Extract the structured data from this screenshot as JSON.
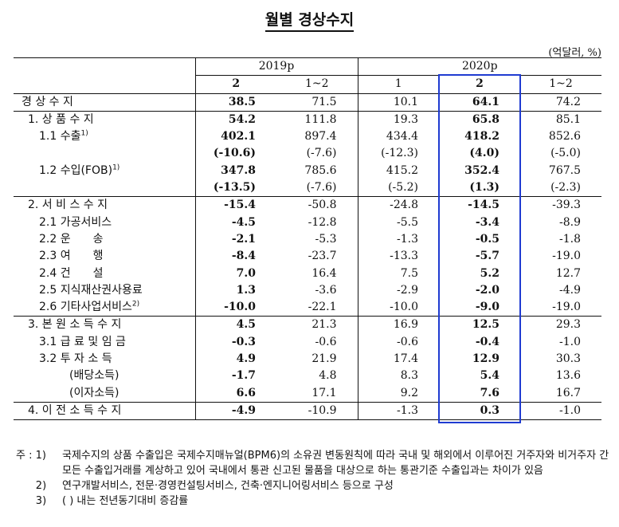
{
  "title": "월별 경상수지",
  "unit": "(억달러, %)",
  "header": {
    "year_2019": "2019p",
    "year_2020": "2020p",
    "cols": [
      "2",
      "1~2",
      "1",
      "2",
      "1~2"
    ]
  },
  "rows": [
    {
      "label": "경 상 수 지",
      "indent": 0,
      "vals": [
        "38.5",
        "71.5",
        "10.1",
        "64.1",
        "74.2"
      ]
    },
    {
      "label": "1. 상 품 수 지",
      "indent": 1,
      "vals": [
        "54.2",
        "111.8",
        "19.3",
        "65.8",
        "85.1"
      ]
    },
    {
      "label": "1.1 수출",
      "sup": "1)",
      "indent": 2,
      "vals": [
        "402.1",
        "897.4",
        "434.4",
        "418.2",
        "852.6"
      ]
    },
    {
      "label": "",
      "indent": 2,
      "vals": [
        "(-10.6)",
        "(-7.6)",
        "(-12.3)",
        "(4.0)",
        "(-5.0)"
      ]
    },
    {
      "label": "1.2 수입(FOB)",
      "sup": "1)",
      "indent": 2,
      "vals": [
        "347.8",
        "785.6",
        "415.2",
        "352.4",
        "767.5"
      ]
    },
    {
      "label": "",
      "indent": 2,
      "vals": [
        "(-13.5)",
        "(-7.6)",
        "(-5.2)",
        "(1.3)",
        "(-2.3)"
      ]
    },
    {
      "label": "2. 서 비 스 수 지",
      "indent": 1,
      "vals": [
        "-15.4",
        "-50.8",
        "-24.8",
        "-14.5",
        "-39.3"
      ]
    },
    {
      "label": "2.1 가공서비스",
      "indent": 2,
      "vals": [
        "-4.5",
        "-12.8",
        "-5.5",
        "-3.4",
        "-8.9"
      ]
    },
    {
      "label": "2.2 운　　송",
      "indent": 2,
      "vals": [
        "-2.1",
        "-5.3",
        "-1.3",
        "-0.5",
        "-1.8"
      ]
    },
    {
      "label": "2.3 여　　행",
      "indent": 2,
      "vals": [
        "-8.4",
        "-23.7",
        "-13.3",
        "-5.7",
        "-19.0"
      ]
    },
    {
      "label": "2.4 건　　설",
      "indent": 2,
      "vals": [
        "7.0",
        "16.4",
        "7.5",
        "5.2",
        "12.7"
      ]
    },
    {
      "label": "2.5 지식재산권사용료",
      "indent": 2,
      "vals": [
        "1.3",
        "-3.6",
        "-2.9",
        "-2.0",
        "-4.9"
      ]
    },
    {
      "label": "2.6 기타사업서비스",
      "sup": "2)",
      "indent": 2,
      "vals": [
        "-10.0",
        "-22.1",
        "-10.0",
        "-9.0",
        "-19.0"
      ]
    },
    {
      "label": "3. 본 원 소 득 수 지",
      "indent": 1,
      "vals": [
        "4.5",
        "21.3",
        "16.9",
        "12.5",
        "29.3"
      ]
    },
    {
      "label": "3.1 급 료 및 임 금",
      "indent": 2,
      "vals": [
        "-0.3",
        "-0.6",
        "-0.6",
        "-0.4",
        "-1.0"
      ]
    },
    {
      "label": "3.2 투 자 소 득",
      "indent": 2,
      "vals": [
        "4.9",
        "21.9",
        "17.4",
        "12.9",
        "30.3"
      ]
    },
    {
      "label": "(배당소득)",
      "indent": 3,
      "vals": [
        "-1.7",
        "4.8",
        "8.3",
        "5.4",
        "13.6"
      ]
    },
    {
      "label": "(이자소득)",
      "indent": 3,
      "vals": [
        "6.6",
        "17.1",
        "9.2",
        "7.6",
        "16.7"
      ]
    },
    {
      "label": "4. 이 전 소 득 수 지",
      "indent": 1,
      "vals": [
        "-4.9",
        "-10.9",
        "-1.3",
        "0.3",
        "-1.0"
      ]
    }
  ],
  "notes": [
    {
      "prefix": "주 : 1)",
      "text": "국제수지의 상품 수출입은 국제수지매뉴얼(BPM6)의 소유권 변동원칙에 따라 국내 및 해외에서 이루어진 거주자와 비거주자 간 모든 수출입거래를 계상하고 있어 국내에서 통관 신고된 물품을 대상으로 하는 통관기준 수출입과는 차이가 있음"
    },
    {
      "prefix": "      2)",
      "text": "연구개발서비스, 전문·경영컨설팅서비스, 건축·엔지니어링서비스 등으로 구성"
    },
    {
      "prefix": "      3)",
      "text": "( ) 내는 전년동기대비 증감률"
    }
  ],
  "highlight_color": "#1f3bd1"
}
